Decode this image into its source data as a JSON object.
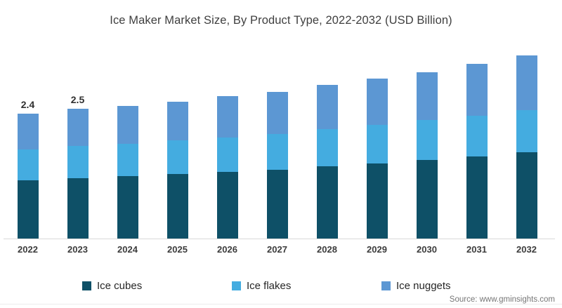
{
  "title": "Ice Maker Market Size, By Product Type, 2022-2032 (USD Billion)",
  "source": "Source: www.gminsights.com",
  "colors": {
    "ice_cubes": "#0E5067",
    "ice_flakes": "#44ACE0",
    "ice_nuggets": "#5C97D3",
    "axis_line": "#D8D8D8",
    "title_text": "#3F3F3F",
    "label_text": "#303030",
    "source_text": "#767676"
  },
  "chart_data": {
    "type": "bar",
    "stacked": true,
    "title": "Ice Maker Market Size, By Product Type, 2022-2032 (USD Billion)",
    "xlabel": "",
    "ylabel": "",
    "ylim": [
      0,
      3.6
    ],
    "grid": false,
    "legend_position": "bottom",
    "categories": [
      "2022",
      "2023",
      "2024",
      "2025",
      "2026",
      "2027",
      "2028",
      "2029",
      "2030",
      "2031",
      "2032"
    ],
    "series": [
      {
        "name": "Ice cubes",
        "color_key": "ice_cubes",
        "values": [
          1.12,
          1.16,
          1.2,
          1.24,
          1.28,
          1.33,
          1.39,
          1.45,
          1.51,
          1.58,
          1.66
        ]
      },
      {
        "name": "Ice flakes",
        "color_key": "ice_flakes",
        "values": [
          0.6,
          0.62,
          0.63,
          0.65,
          0.67,
          0.69,
          0.72,
          0.74,
          0.77,
          0.79,
          0.82
        ]
      },
      {
        "name": "Ice nuggets",
        "color_key": "ice_nuggets",
        "values": [
          0.68,
          0.72,
          0.72,
          0.75,
          0.79,
          0.81,
          0.85,
          0.89,
          0.93,
          1.0,
          1.05
        ]
      }
    ],
    "totals": [
      2.4,
      2.5,
      2.55,
      2.64,
      2.74,
      2.83,
      2.96,
      3.08,
      3.21,
      3.37,
      3.53
    ],
    "data_labels": [
      "2.4",
      "2.5",
      "",
      "",
      "",
      "",
      "",
      "",
      "",
      "",
      ""
    ]
  }
}
